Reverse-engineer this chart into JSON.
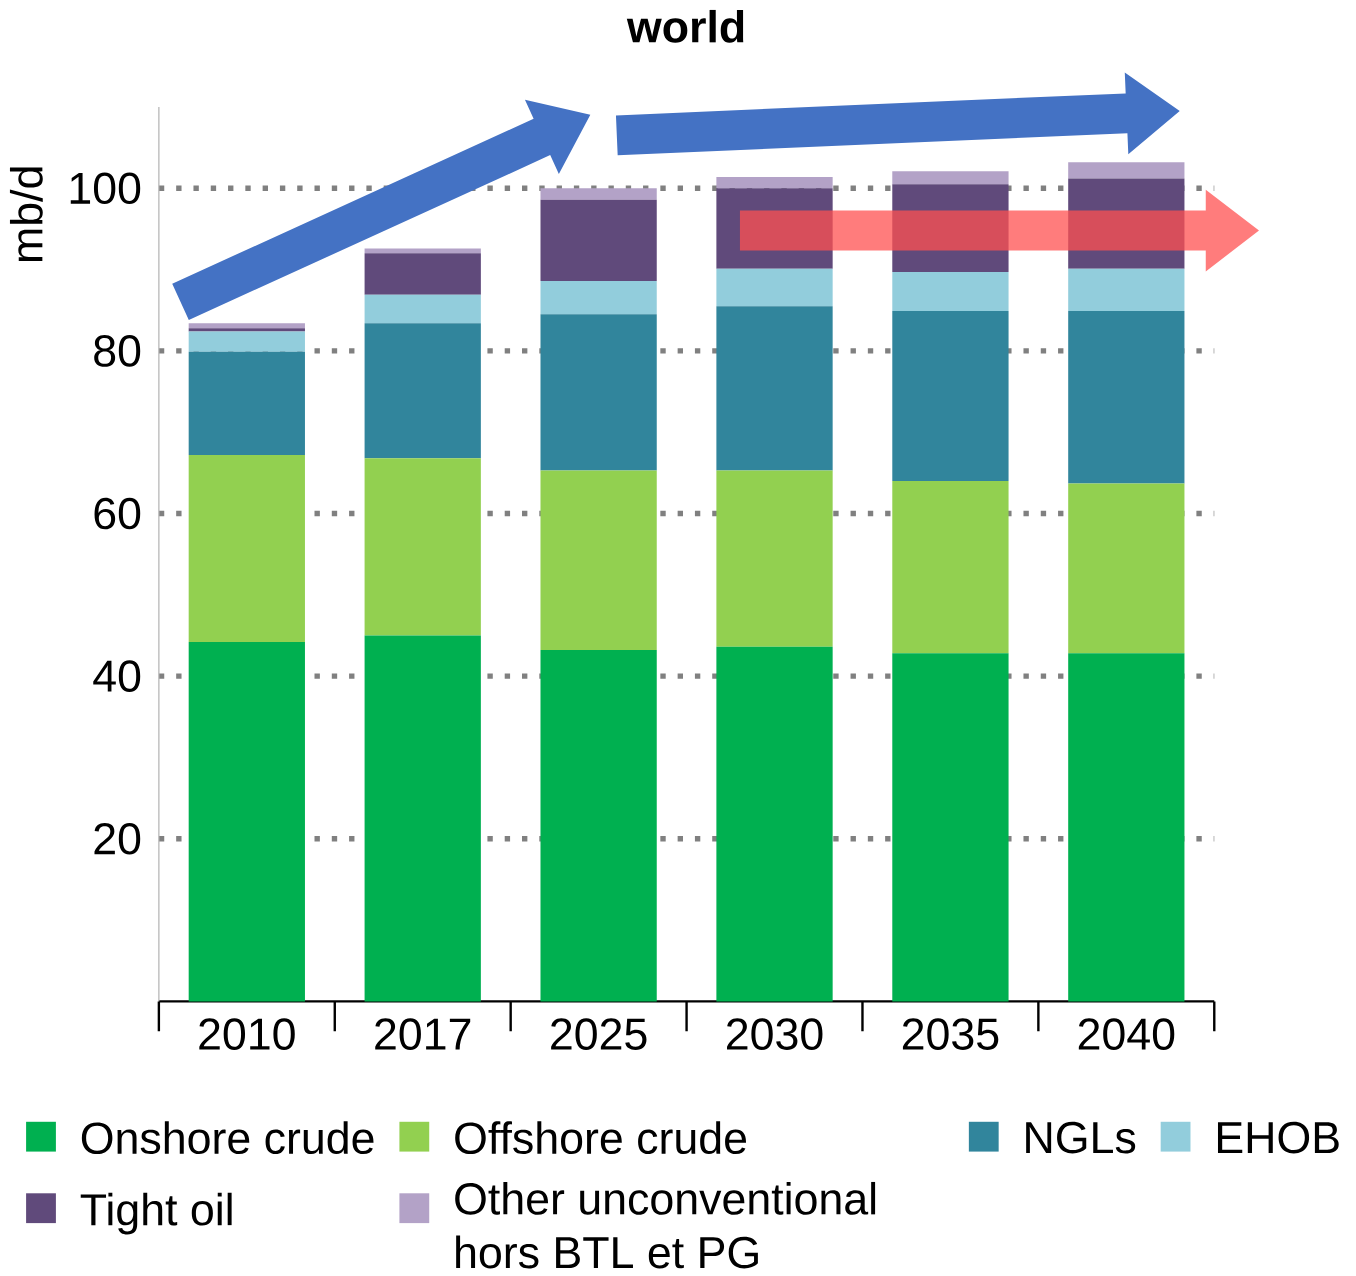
{
  "chart_data": {
    "type": "bar",
    "title": "world",
    "ylabel": "mb/d",
    "stacked": true,
    "categories": [
      "2010",
      "2017",
      "2025",
      "2030",
      "2035",
      "2040"
    ],
    "series": [
      {
        "name": "Onshore crude",
        "color": "#00b050",
        "values": [
          44.2,
          45.0,
          43.2,
          43.6,
          42.8,
          42.8
        ]
      },
      {
        "name": "Offshore crude",
        "color": "#92d050",
        "values": [
          23.0,
          21.8,
          22.1,
          21.7,
          21.2,
          20.9
        ]
      },
      {
        "name": "NGLs",
        "color": "#31859c",
        "values": [
          12.7,
          16.6,
          19.2,
          20.2,
          20.9,
          21.2
        ]
      },
      {
        "name": "EHOB",
        "color": "#92cddc",
        "values": [
          2.5,
          3.5,
          4.1,
          4.6,
          4.8,
          5.2
        ]
      },
      {
        "name": "Tight oil",
        "color": "#604a7b",
        "values": [
          0.4,
          5.1,
          10.0,
          9.9,
          10.8,
          11.1
        ]
      },
      {
        "name": "Other unconventional hors BTL et PG",
        "color": "#b3a2c7",
        "values": [
          0.6,
          0.6,
          1.4,
          1.4,
          1.6,
          2.0
        ]
      }
    ],
    "ylim": [
      0,
      110
    ],
    "yticks": [
      20,
      40,
      60,
      80,
      100
    ],
    "grid": "y",
    "legend": "bottom"
  }
}
